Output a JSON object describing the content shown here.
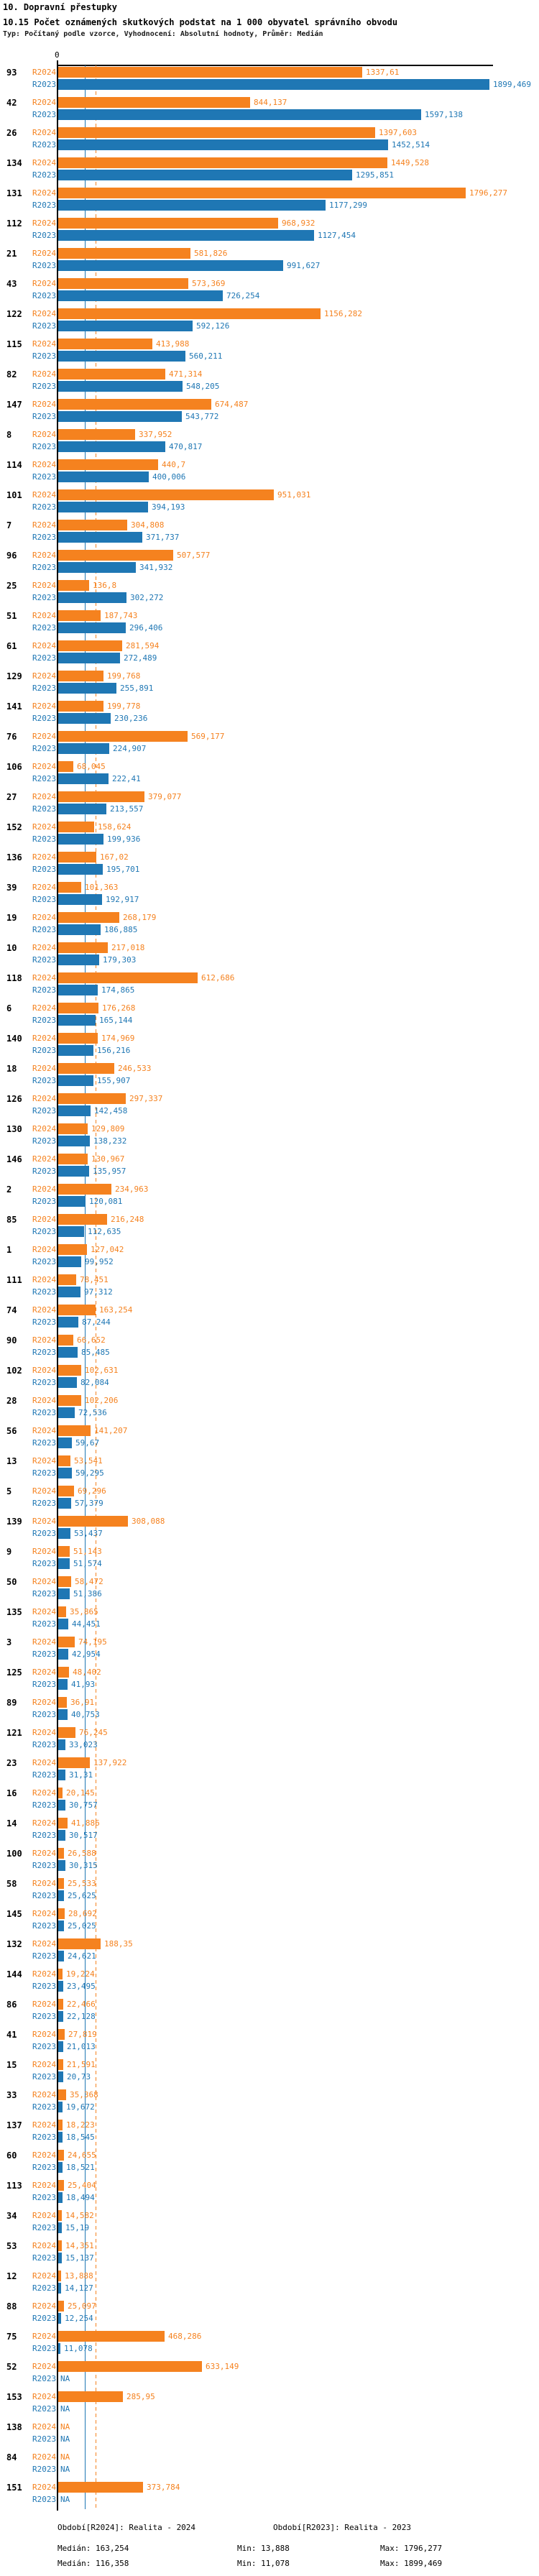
{
  "header": {
    "section_title": "10. Dopravní přestupky",
    "chart_title": "10.15 Počet oznámených skutkových podstat na 1 000 obyvatel správního obvodu",
    "subtitle": "Typ: Počítaný podle vzorce, Vyhodnocení: Absolutní hodnoty, Průměr: Medián"
  },
  "chart_data": {
    "type": "bar",
    "orientation": "horizontal",
    "x_axis": {
      "origin_label": "0",
      "max_value": 1899.469
    },
    "series_labels": {
      "r2024": "R2024",
      "r2023": "R2023"
    },
    "colors": {
      "r2024": "#F5821F",
      "r2023": "#1F77B4"
    },
    "median_lines": {
      "r2024": 163.254,
      "r2023": 116.358
    },
    "na_label": "NA",
    "rows": [
      {
        "id": "93",
        "r2024": "1337,61",
        "r2023": "1899,469"
      },
      {
        "id": "42",
        "r2024": "844,137",
        "r2023": "1597,138"
      },
      {
        "id": "26",
        "r2024": "1397,603",
        "r2023": "1452,514"
      },
      {
        "id": "134",
        "r2024": "1449,528",
        "r2023": "1295,851"
      },
      {
        "id": "131",
        "r2024": "1796,277",
        "r2023": "1177,299"
      },
      {
        "id": "112",
        "r2024": "968,932",
        "r2023": "1127,454"
      },
      {
        "id": "21",
        "r2024": "581,826",
        "r2023": "991,627"
      },
      {
        "id": "43",
        "r2024": "573,369",
        "r2023": "726,254"
      },
      {
        "id": "122",
        "r2024": "1156,282",
        "r2023": "592,126"
      },
      {
        "id": "115",
        "r2024": "413,988",
        "r2023": "560,211"
      },
      {
        "id": "82",
        "r2024": "471,314",
        "r2023": "548,205"
      },
      {
        "id": "147",
        "r2024": "674,487",
        "r2023": "543,772"
      },
      {
        "id": "8",
        "r2024": "337,952",
        "r2023": "470,817"
      },
      {
        "id": "114",
        "r2024": "440,7",
        "r2023": "400,006"
      },
      {
        "id": "101",
        "r2024": "951,031",
        "r2023": "394,193"
      },
      {
        "id": "7",
        "r2024": "304,808",
        "r2023": "371,737"
      },
      {
        "id": "96",
        "r2024": "507,577",
        "r2023": "341,932"
      },
      {
        "id": "25",
        "r2024": "136,8",
        "r2023": "302,272"
      },
      {
        "id": "51",
        "r2024": "187,743",
        "r2023": "296,406"
      },
      {
        "id": "61",
        "r2024": "281,594",
        "r2023": "272,489"
      },
      {
        "id": "129",
        "r2024": "199,768",
        "r2023": "255,891"
      },
      {
        "id": "141",
        "r2024": "199,778",
        "r2023": "230,236"
      },
      {
        "id": "76",
        "r2024": "569,177",
        "r2023": "224,907"
      },
      {
        "id": "106",
        "r2024": "68,045",
        "r2023": "222,41"
      },
      {
        "id": "27",
        "r2024": "379,077",
        "r2023": "213,557"
      },
      {
        "id": "152",
        "r2024": "158,624",
        "r2023": "199,936"
      },
      {
        "id": "136",
        "r2024": "167,02",
        "r2023": "195,701"
      },
      {
        "id": "39",
        "r2024": "101,363",
        "r2023": "192,917"
      },
      {
        "id": "19",
        "r2024": "268,179",
        "r2023": "186,885"
      },
      {
        "id": "10",
        "r2024": "217,018",
        "r2023": "179,303"
      },
      {
        "id": "118",
        "r2024": "612,686",
        "r2023": "174,865"
      },
      {
        "id": "6",
        "r2024": "176,268",
        "r2023": "165,144"
      },
      {
        "id": "140",
        "r2024": "174,969",
        "r2023": "156,216"
      },
      {
        "id": "18",
        "r2024": "246,533",
        "r2023": "155,907"
      },
      {
        "id": "126",
        "r2024": "297,337",
        "r2023": "142,458"
      },
      {
        "id": "130",
        "r2024": "129,809",
        "r2023": "138,232"
      },
      {
        "id": "146",
        "r2024": "130,967",
        "r2023": "135,957"
      },
      {
        "id": "2",
        "r2024": "234,963",
        "r2023": "120,081"
      },
      {
        "id": "85",
        "r2024": "216,248",
        "r2023": "112,635"
      },
      {
        "id": "1",
        "r2024": "127,042",
        "r2023": "99,952"
      },
      {
        "id": "111",
        "r2024": "78,451",
        "r2023": "97,312"
      },
      {
        "id": "74",
        "r2024": "163,254",
        "r2023": "87,244"
      },
      {
        "id": "90",
        "r2024": "66,652",
        "r2023": "85,485"
      },
      {
        "id": "102",
        "r2024": "102,631",
        "r2023": "82,084"
      },
      {
        "id": "28",
        "r2024": "102,206",
        "r2023": "72,536"
      },
      {
        "id": "56",
        "r2024": "141,207",
        "r2023": "59,67"
      },
      {
        "id": "13",
        "r2024": "53,541",
        "r2023": "59,295"
      },
      {
        "id": "5",
        "r2024": "69,296",
        "r2023": "57,379"
      },
      {
        "id": "139",
        "r2024": "308,088",
        "r2023": "53,437"
      },
      {
        "id": "9",
        "r2024": "51,143",
        "r2023": "51,574"
      },
      {
        "id": "50",
        "r2024": "58,472",
        "r2023": "51,386"
      },
      {
        "id": "135",
        "r2024": "35,865",
        "r2023": "44,451"
      },
      {
        "id": "3",
        "r2024": "74,195",
        "r2023": "42,954"
      },
      {
        "id": "125",
        "r2024": "48,402",
        "r2023": "41,93"
      },
      {
        "id": "89",
        "r2024": "36,91",
        "r2023": "40,753"
      },
      {
        "id": "121",
        "r2024": "76,245",
        "r2023": "33,023"
      },
      {
        "id": "23",
        "r2024": "137,922",
        "r2023": "31,31"
      },
      {
        "id": "16",
        "r2024": "20,145",
        "r2023": "30,757"
      },
      {
        "id": "14",
        "r2024": "41,886",
        "r2023": "30,517"
      },
      {
        "id": "100",
        "r2024": "26,588",
        "r2023": "30,315"
      },
      {
        "id": "58",
        "r2024": "25,533",
        "r2023": "25,625"
      },
      {
        "id": "145",
        "r2024": "28,692",
        "r2023": "25,025"
      },
      {
        "id": "132",
        "r2024": "188,35",
        "r2023": "24,621"
      },
      {
        "id": "144",
        "r2024": "19,224",
        "r2023": "23,495"
      },
      {
        "id": "86",
        "r2024": "22,466",
        "r2023": "22,128"
      },
      {
        "id": "41",
        "r2024": "27,819",
        "r2023": "21,013"
      },
      {
        "id": "15",
        "r2024": "21,591",
        "r2023": "20,73"
      },
      {
        "id": "33",
        "r2024": "35,368",
        "r2023": "19,672"
      },
      {
        "id": "137",
        "r2024": "18,223",
        "r2023": "18,545"
      },
      {
        "id": "60",
        "r2024": "24,655",
        "r2023": "18,521"
      },
      {
        "id": "113",
        "r2024": "25,404",
        "r2023": "18,494"
      },
      {
        "id": "34",
        "r2024": "14,582",
        "r2023": "15,19"
      },
      {
        "id": "53",
        "r2024": "14,351",
        "r2023": "15,137"
      },
      {
        "id": "12",
        "r2024": "13,888",
        "r2023": "14,127"
      },
      {
        "id": "88",
        "r2024": "25,097",
        "r2023": "12,254"
      },
      {
        "id": "75",
        "r2024": "468,286",
        "r2023": "11,078"
      },
      {
        "id": "52",
        "r2024": "633,149",
        "r2023": "NA"
      },
      {
        "id": "153",
        "r2024": "285,95",
        "r2023": "NA"
      },
      {
        "id": "138",
        "r2024": "NA",
        "r2023": "NA"
      },
      {
        "id": "84",
        "r2024": "NA",
        "r2023": "NA"
      },
      {
        "id": "151",
        "r2024": "373,784",
        "r2023": "NA"
      }
    ]
  },
  "footer": {
    "legend_r2024": "Období[R2024]: Realita - 2024",
    "legend_r2023": "Období[R2023]: Realita - 2023",
    "stats_r2024": {
      "median": "Medián: 163,254",
      "min": "Min: 13,888",
      "max": "Max: 1796,277"
    },
    "stats_r2023": {
      "median": "Medián: 116,358",
      "min": "Min: 11,078",
      "max": "Max: 1899,469"
    }
  }
}
